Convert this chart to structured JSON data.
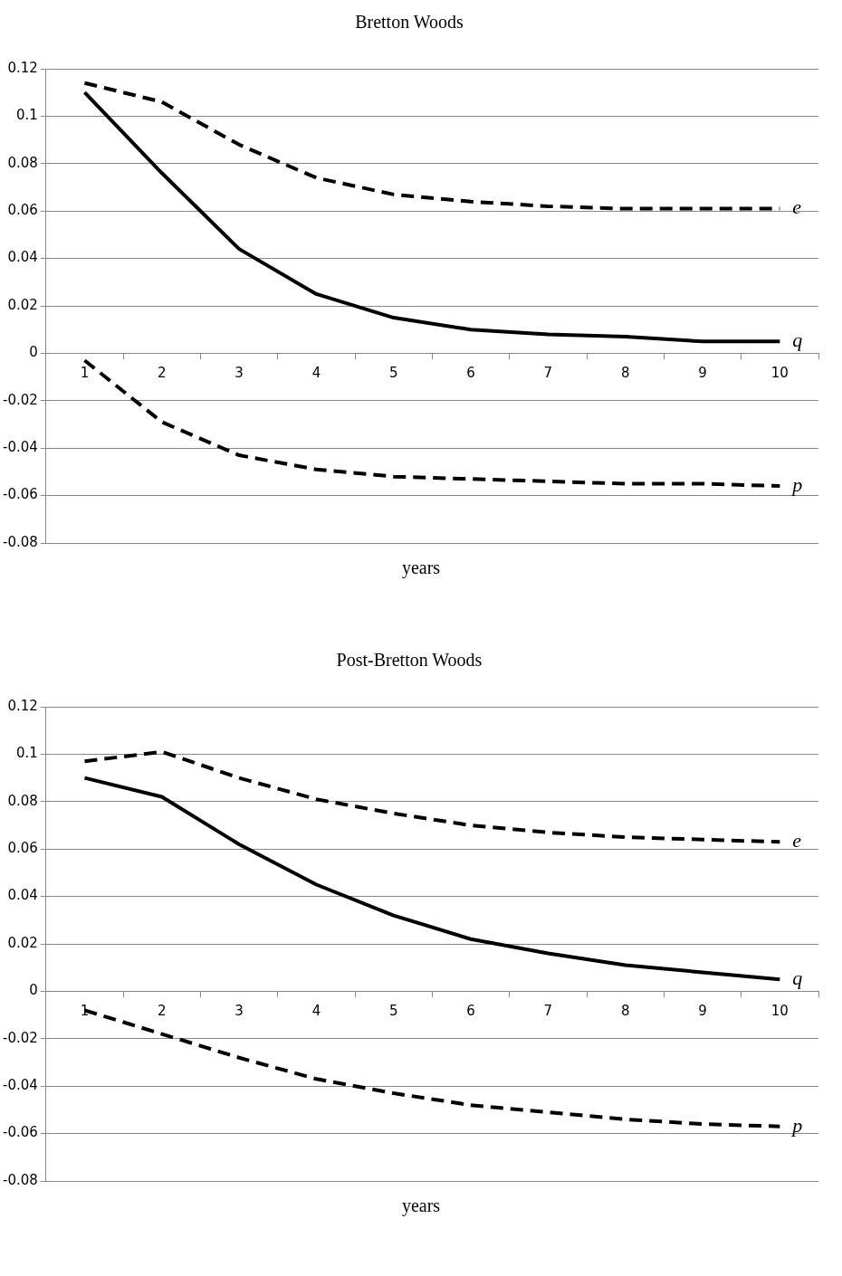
{
  "chart_data": [
    {
      "type": "line",
      "title": "Bretton Woods",
      "xlabel": "years",
      "categories": [
        "1",
        "2",
        "3",
        "4",
        "5",
        "6",
        "7",
        "8",
        "9",
        "10"
      ],
      "series": [
        {
          "name": "e",
          "color": "#000000",
          "line_style": "dashed",
          "values": [
            0.114,
            0.106,
            0.088,
            0.074,
            0.067,
            0.064,
            0.062,
            0.061,
            0.061,
            0.061
          ]
        },
        {
          "name": "q",
          "color": "#000000",
          "line_style": "solid",
          "values": [
            0.11,
            0.076,
            0.044,
            0.025,
            0.015,
            0.01,
            0.008,
            0.007,
            0.005,
            0.005
          ]
        },
        {
          "name": "p",
          "color": "#000000",
          "line_style": "dashed",
          "values": [
            -0.003,
            -0.029,
            -0.043,
            -0.049,
            -0.052,
            -0.053,
            -0.054,
            -0.055,
            -0.055,
            -0.056
          ]
        }
      ],
      "ylim": [
        -0.08,
        0.12
      ],
      "yticks": [
        -0.08,
        -0.06,
        -0.04,
        -0.02,
        0,
        0.02,
        0.04,
        0.06,
        0.08,
        0.1,
        0.12
      ],
      "grid": "y",
      "legend": false,
      "marker": "none"
    },
    {
      "type": "line",
      "title": "Post-Bretton Woods",
      "xlabel": "years",
      "categories": [
        "1",
        "2",
        "3",
        "4",
        "5",
        "6",
        "7",
        "8",
        "9",
        "10"
      ],
      "series": [
        {
          "name": "e",
          "color": "#000000",
          "line_style": "dashed",
          "values": [
            0.097,
            0.101,
            0.09,
            0.081,
            0.075,
            0.07,
            0.067,
            0.065,
            0.064,
            0.063
          ]
        },
        {
          "name": "q",
          "color": "#000000",
          "line_style": "solid",
          "values": [
            0.09,
            0.082,
            0.062,
            0.045,
            0.032,
            0.022,
            0.016,
            0.011,
            0.008,
            0.005
          ]
        },
        {
          "name": "p",
          "color": "#000000",
          "line_style": "dashed",
          "values": [
            -0.008,
            -0.018,
            -0.028,
            -0.037,
            -0.043,
            -0.048,
            -0.051,
            -0.054,
            -0.056,
            -0.057
          ]
        }
      ],
      "ylim": [
        -0.08,
        0.12
      ],
      "yticks": [
        -0.08,
        -0.06,
        -0.04,
        -0.02,
        0,
        0.02,
        0.04,
        0.06,
        0.08,
        0.1,
        0.12
      ],
      "grid": "y",
      "legend": false,
      "marker": "none"
    }
  ]
}
